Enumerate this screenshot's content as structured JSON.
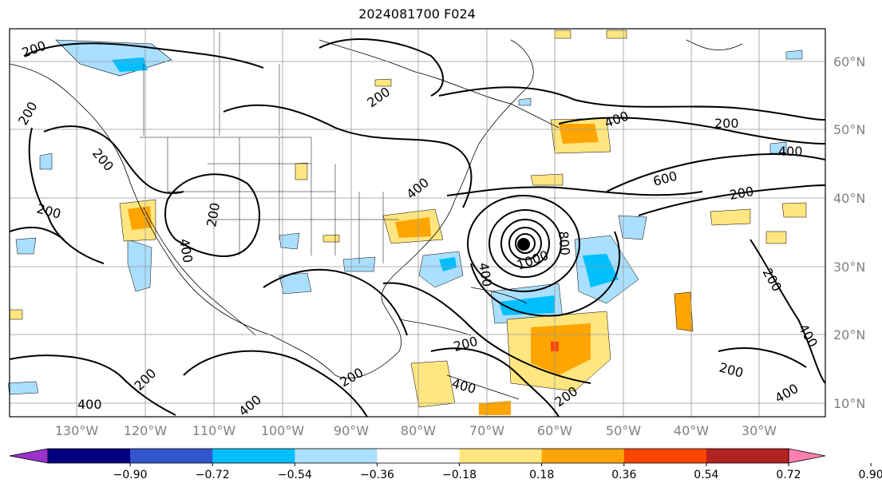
{
  "title": "2024081700 F024",
  "lon_labels": [
    "130°W",
    "120°W",
    "110°W",
    "100°W",
    "90°W",
    "80°W",
    "70°W",
    "60°W",
    "50°W",
    "40°W",
    "30°W"
  ],
  "lat_labels": [
    "60°N",
    "50°N",
    "40°N",
    "30°N",
    "20°N",
    "10°N"
  ],
  "colorbar": {
    "ticks": [
      "−0.90",
      "−0.72",
      "−0.54",
      "−0.36",
      "−0.18",
      "0.18",
      "0.36",
      "0.54",
      "0.72",
      "0.90"
    ],
    "colors": [
      "#9933cc",
      "#000080",
      "#3355cc",
      "#00bfff",
      "#aadfff",
      "#ffffff",
      "#ffe680",
      "#ffa500",
      "#ff4500",
      "#b22222",
      "#ff80b0"
    ]
  },
  "contour_labels": [
    "200",
    "400",
    "600",
    "800",
    "1000"
  ],
  "colors": {
    "positive_shade": "#ffa500",
    "light_positive": "#ffe680",
    "negative_shade": "#00bfff",
    "light_negative": "#aadfff",
    "contour": "#000000",
    "grid": "#999999",
    "axis_label": "#808080"
  }
}
